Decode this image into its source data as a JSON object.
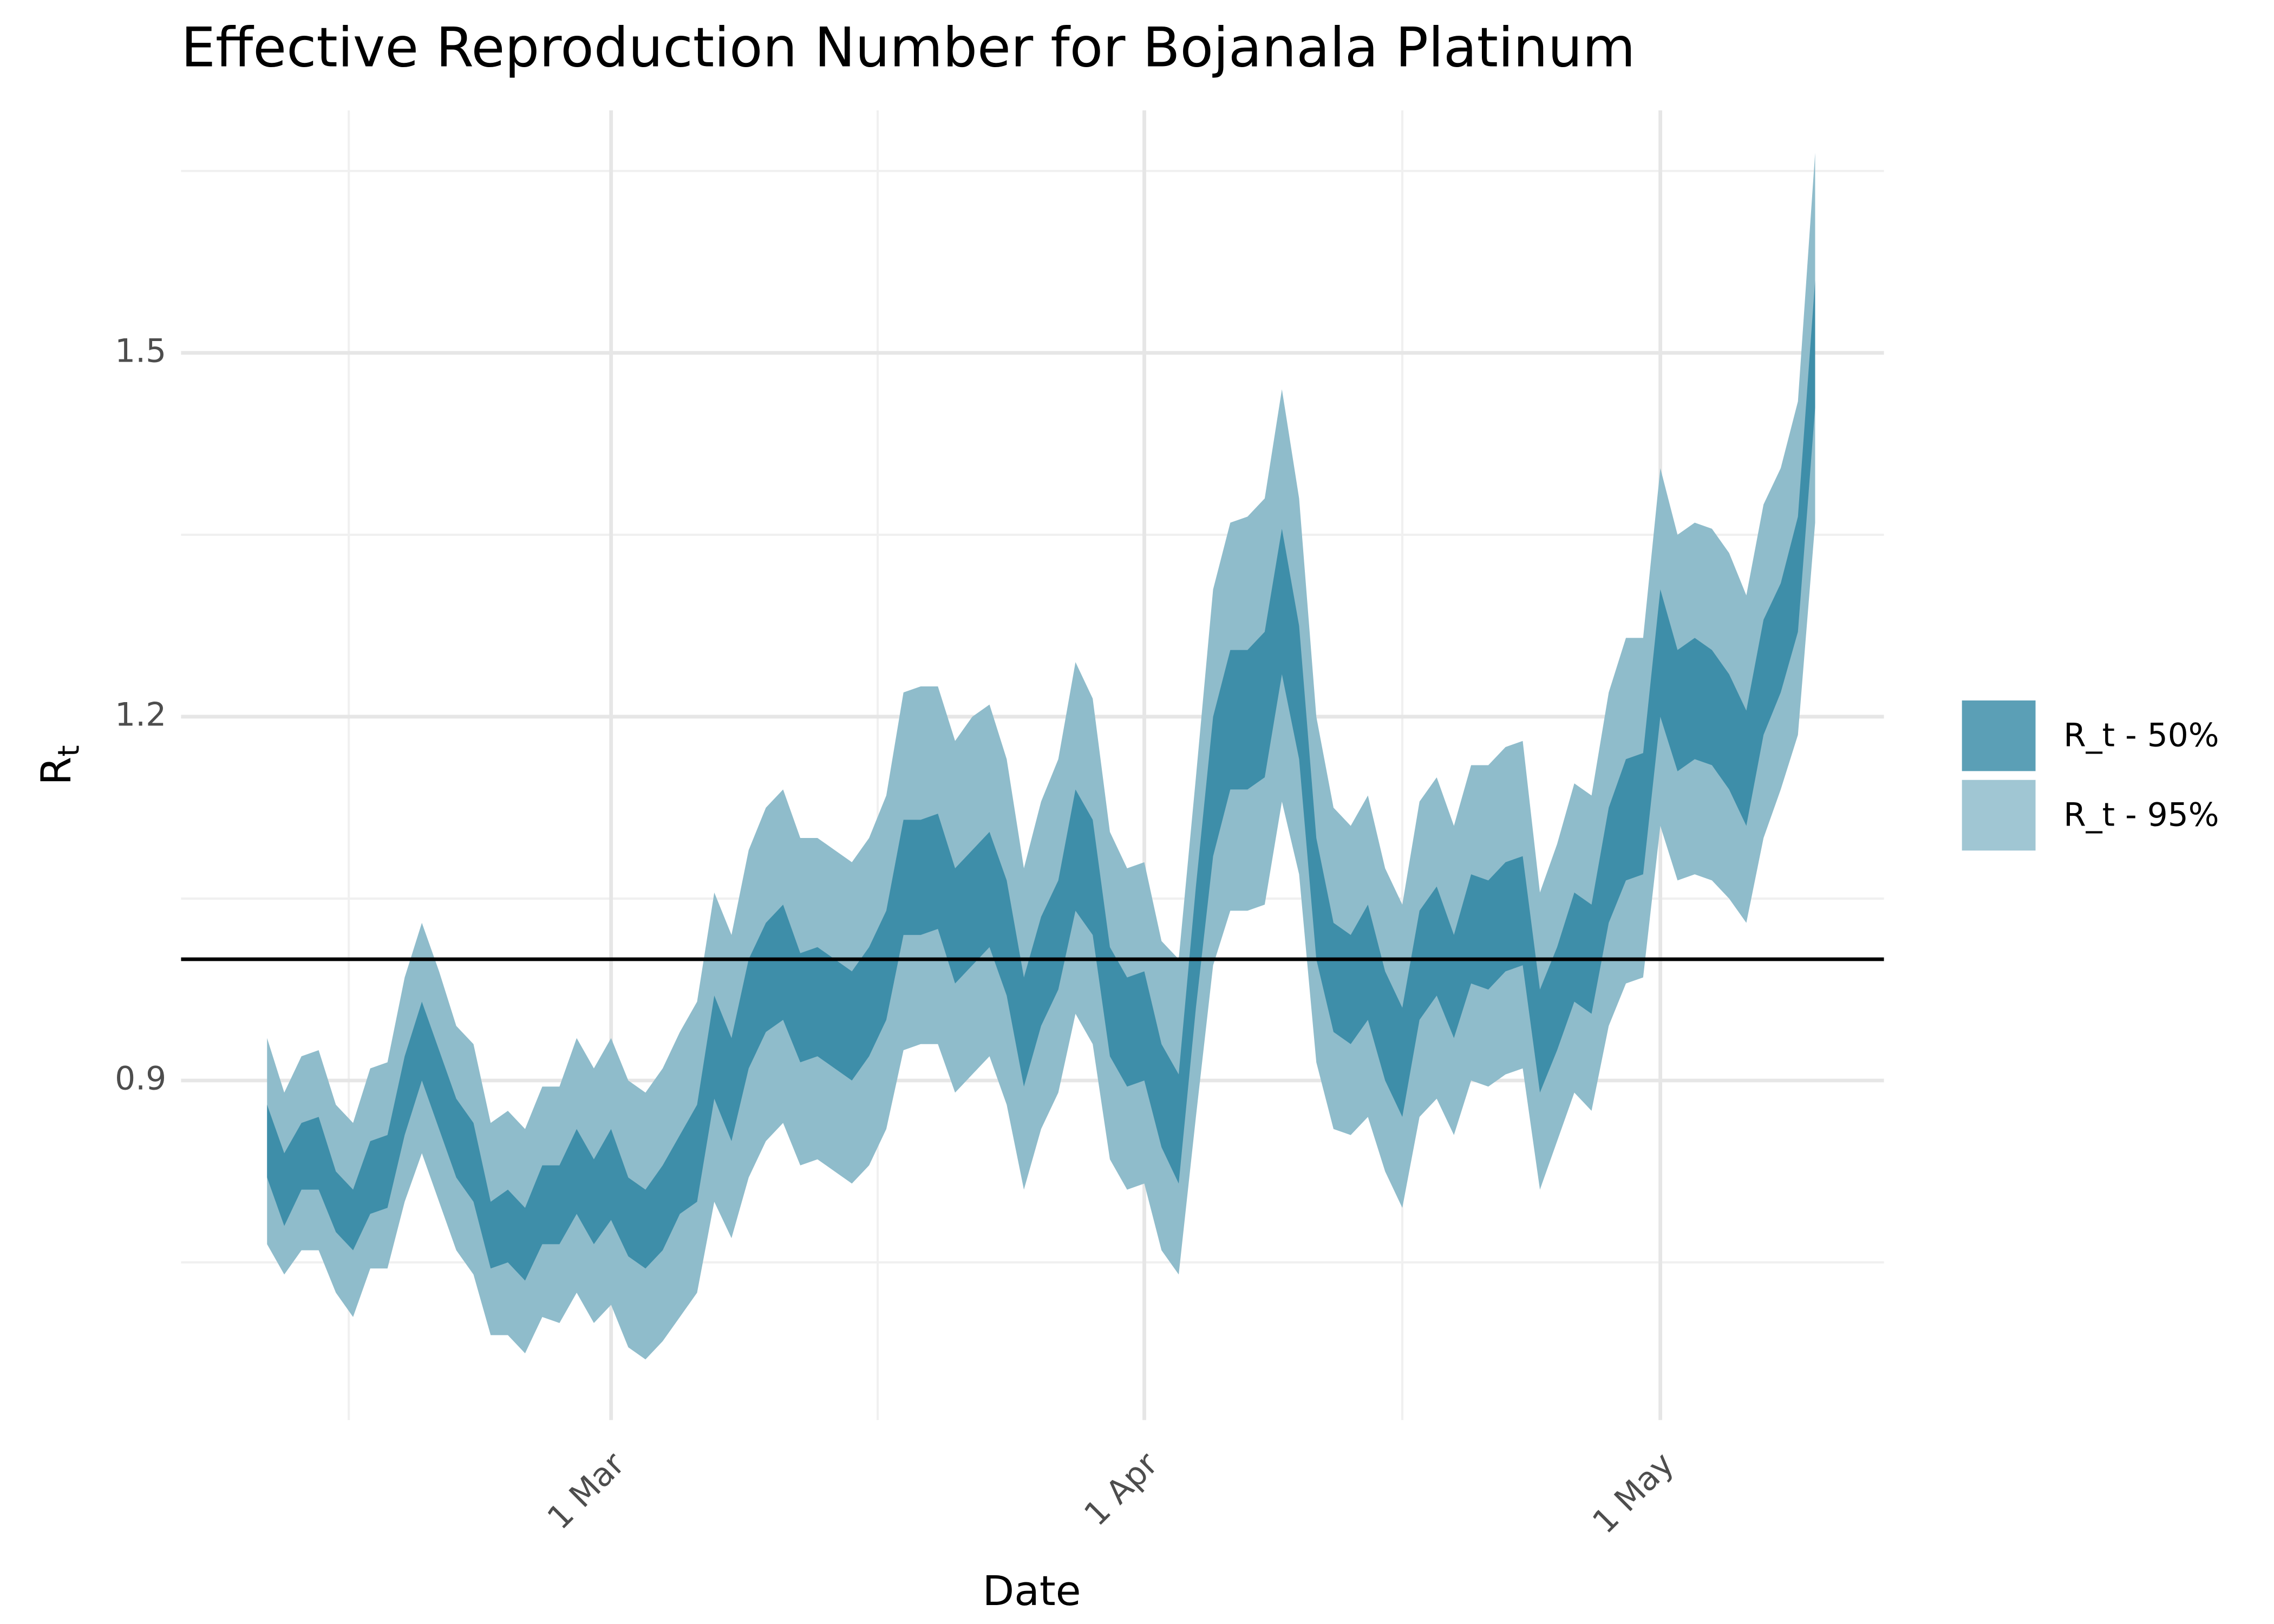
{
  "chart_data": {
    "type": "ribbon",
    "title": "Effective Reproduction Number for Bojanala Platinum",
    "xlabel": "Date",
    "ylabel": {
      "main": "R",
      "sub": "t"
    },
    "x": [
      "10 Feb",
      "11 Feb",
      "12 Feb",
      "13 Feb",
      "14 Feb",
      "15 Feb",
      "16 Feb",
      "17 Feb",
      "18 Feb",
      "19 Feb",
      "20 Feb",
      "21 Feb",
      "22 Feb",
      "23 Feb",
      "24 Feb",
      "25 Feb",
      "26 Feb",
      "27 Feb",
      "28 Feb",
      "29 Feb",
      "1 Mar",
      "2 Mar",
      "3 Mar",
      "4 Mar",
      "5 Mar",
      "6 Mar",
      "7 Mar",
      "8 Mar",
      "9 Mar",
      "10 Mar",
      "11 Mar",
      "12 Mar",
      "13 Mar",
      "14 Mar",
      "15 Mar",
      "16 Mar",
      "17 Mar",
      "18 Mar",
      "19 Mar",
      "20 Mar",
      "21 Mar",
      "22 Mar",
      "23 Mar",
      "24 Mar",
      "25 Mar",
      "26 Mar",
      "27 Mar",
      "28 Mar",
      "29 Mar",
      "30 Mar",
      "31 Mar",
      "1 Apr",
      "2 Apr",
      "3 Apr",
      "4 Apr",
      "5 Apr",
      "6 Apr",
      "7 Apr",
      "8 Apr",
      "9 Apr",
      "10 Apr",
      "11 Apr",
      "12 Apr",
      "13 Apr",
      "14 Apr",
      "15 Apr",
      "16 Apr",
      "17 Apr",
      "18 Apr",
      "19 Apr",
      "20 Apr",
      "21 Apr",
      "22 Apr",
      "23 Apr",
      "24 Apr",
      "25 Apr",
      "26 Apr",
      "27 Apr",
      "28 Apr",
      "29 Apr",
      "30 Apr",
      "1 May",
      "2 May",
      "3 May",
      "4 May",
      "5 May",
      "6 May",
      "7 May",
      "8 May",
      "9 May",
      "10 May"
    ],
    "series": [
      {
        "name": "R_t - 50%",
        "color": "#3e8ea9",
        "upper": [
          0.88,
          0.84,
          0.865,
          0.87,
          0.825,
          0.81,
          0.85,
          0.855,
          0.92,
          0.965,
          0.925,
          0.885,
          0.865,
          0.8,
          0.81,
          0.795,
          0.83,
          0.83,
          0.86,
          0.835,
          0.86,
          0.82,
          0.81,
          0.83,
          0.855,
          0.88,
          0.97,
          0.935,
          1.0,
          1.03,
          1.045,
          1.005,
          1.01,
          1.0,
          0.99,
          1.01,
          1.04,
          1.115,
          1.115,
          1.12,
          1.075,
          1.09,
          1.105,
          1.065,
          0.985,
          1.035,
          1.065,
          1.14,
          1.115,
          1.01,
          0.985,
          0.99,
          0.93,
          0.905,
          1.06,
          1.2,
          1.255,
          1.255,
          1.27,
          1.355,
          1.275,
          1.1,
          1.03,
          1.02,
          1.045,
          0.99,
          0.96,
          1.04,
          1.06,
          1.02,
          1.07,
          1.065,
          1.08,
          1.085,
          0.975,
          1.01,
          1.055,
          1.045,
          1.125,
          1.165,
          1.17,
          1.305,
          1.255,
          1.265,
          1.255,
          1.235,
          1.205,
          1.28,
          1.31,
          1.365,
          1.56
        ],
        "lower": [
          0.82,
          0.78,
          0.81,
          0.81,
          0.775,
          0.76,
          0.79,
          0.795,
          0.855,
          0.9,
          0.86,
          0.82,
          0.8,
          0.745,
          0.75,
          0.735,
          0.765,
          0.765,
          0.79,
          0.765,
          0.785,
          0.755,
          0.745,
          0.76,
          0.79,
          0.8,
          0.885,
          0.85,
          0.91,
          0.94,
          0.95,
          0.915,
          0.92,
          0.91,
          0.9,
          0.92,
          0.95,
          1.02,
          1.02,
          1.025,
          0.98,
          0.995,
          1.01,
          0.97,
          0.895,
          0.945,
          0.975,
          1.04,
          1.02,
          0.92,
          0.895,
          0.9,
          0.845,
          0.815,
          0.96,
          1.085,
          1.14,
          1.14,
          1.15,
          1.235,
          1.165,
          1.0,
          0.94,
          0.93,
          0.95,
          0.9,
          0.87,
          0.95,
          0.97,
          0.935,
          0.98,
          0.975,
          0.99,
          0.995,
          0.89,
          0.925,
          0.965,
          0.955,
          1.03,
          1.065,
          1.07,
          1.2,
          1.155,
          1.165,
          1.16,
          1.14,
          1.11,
          1.185,
          1.22,
          1.27,
          1.455
        ]
      },
      {
        "name": "R_t - 95%",
        "color": "#8fbccb",
        "upper": [
          0.935,
          0.89,
          0.92,
          0.925,
          0.88,
          0.865,
          0.91,
          0.915,
          0.985,
          1.03,
          0.99,
          0.945,
          0.93,
          0.865,
          0.875,
          0.86,
          0.895,
          0.895,
          0.935,
          0.91,
          0.935,
          0.9,
          0.89,
          0.91,
          0.94,
          0.965,
          1.055,
          1.02,
          1.09,
          1.125,
          1.14,
          1.1,
          1.1,
          1.09,
          1.08,
          1.1,
          1.135,
          1.22,
          1.225,
          1.225,
          1.18,
          1.2,
          1.21,
          1.165,
          1.075,
          1.13,
          1.165,
          1.245,
          1.215,
          1.105,
          1.075,
          1.08,
          1.015,
          1.0,
          1.15,
          1.305,
          1.36,
          1.365,
          1.38,
          1.47,
          1.38,
          1.2,
          1.125,
          1.11,
          1.135,
          1.075,
          1.045,
          1.13,
          1.15,
          1.11,
          1.16,
          1.16,
          1.175,
          1.18,
          1.055,
          1.095,
          1.145,
          1.135,
          1.22,
          1.265,
          1.265,
          1.405,
          1.35,
          1.36,
          1.355,
          1.335,
          1.3,
          1.375,
          1.405,
          1.46,
          1.665
        ],
        "lower": [
          0.765,
          0.74,
          0.76,
          0.76,
          0.725,
          0.705,
          0.745,
          0.745,
          0.8,
          0.84,
          0.8,
          0.76,
          0.74,
          0.69,
          0.69,
          0.675,
          0.705,
          0.7,
          0.725,
          0.7,
          0.715,
          0.68,
          0.67,
          0.685,
          0.705,
          0.725,
          0.8,
          0.77,
          0.82,
          0.85,
          0.865,
          0.83,
          0.835,
          0.825,
          0.815,
          0.83,
          0.86,
          0.925,
          0.93,
          0.93,
          0.89,
          0.905,
          0.92,
          0.88,
          0.81,
          0.86,
          0.89,
          0.955,
          0.93,
          0.835,
          0.81,
          0.815,
          0.76,
          0.74,
          0.87,
          0.995,
          1.04,
          1.04,
          1.045,
          1.13,
          1.07,
          0.915,
          0.86,
          0.855,
          0.87,
          0.825,
          0.795,
          0.87,
          0.885,
          0.855,
          0.9,
          0.895,
          0.905,
          0.91,
          0.81,
          0.85,
          0.89,
          0.875,
          0.945,
          0.98,
          0.985,
          1.11,
          1.065,
          1.07,
          1.065,
          1.05,
          1.03,
          1.1,
          1.14,
          1.185,
          1.36
        ]
      }
    ],
    "xlim": [
      "5 Feb",
      "14 May"
    ],
    "xticks": [
      "1 Mar",
      "1 Apr",
      "1 May"
    ],
    "ylim": [
      0.62,
      1.7
    ],
    "yticks": [
      0.9,
      1.2,
      1.5
    ],
    "hline": 1,
    "grid": true,
    "legend": "right"
  }
}
